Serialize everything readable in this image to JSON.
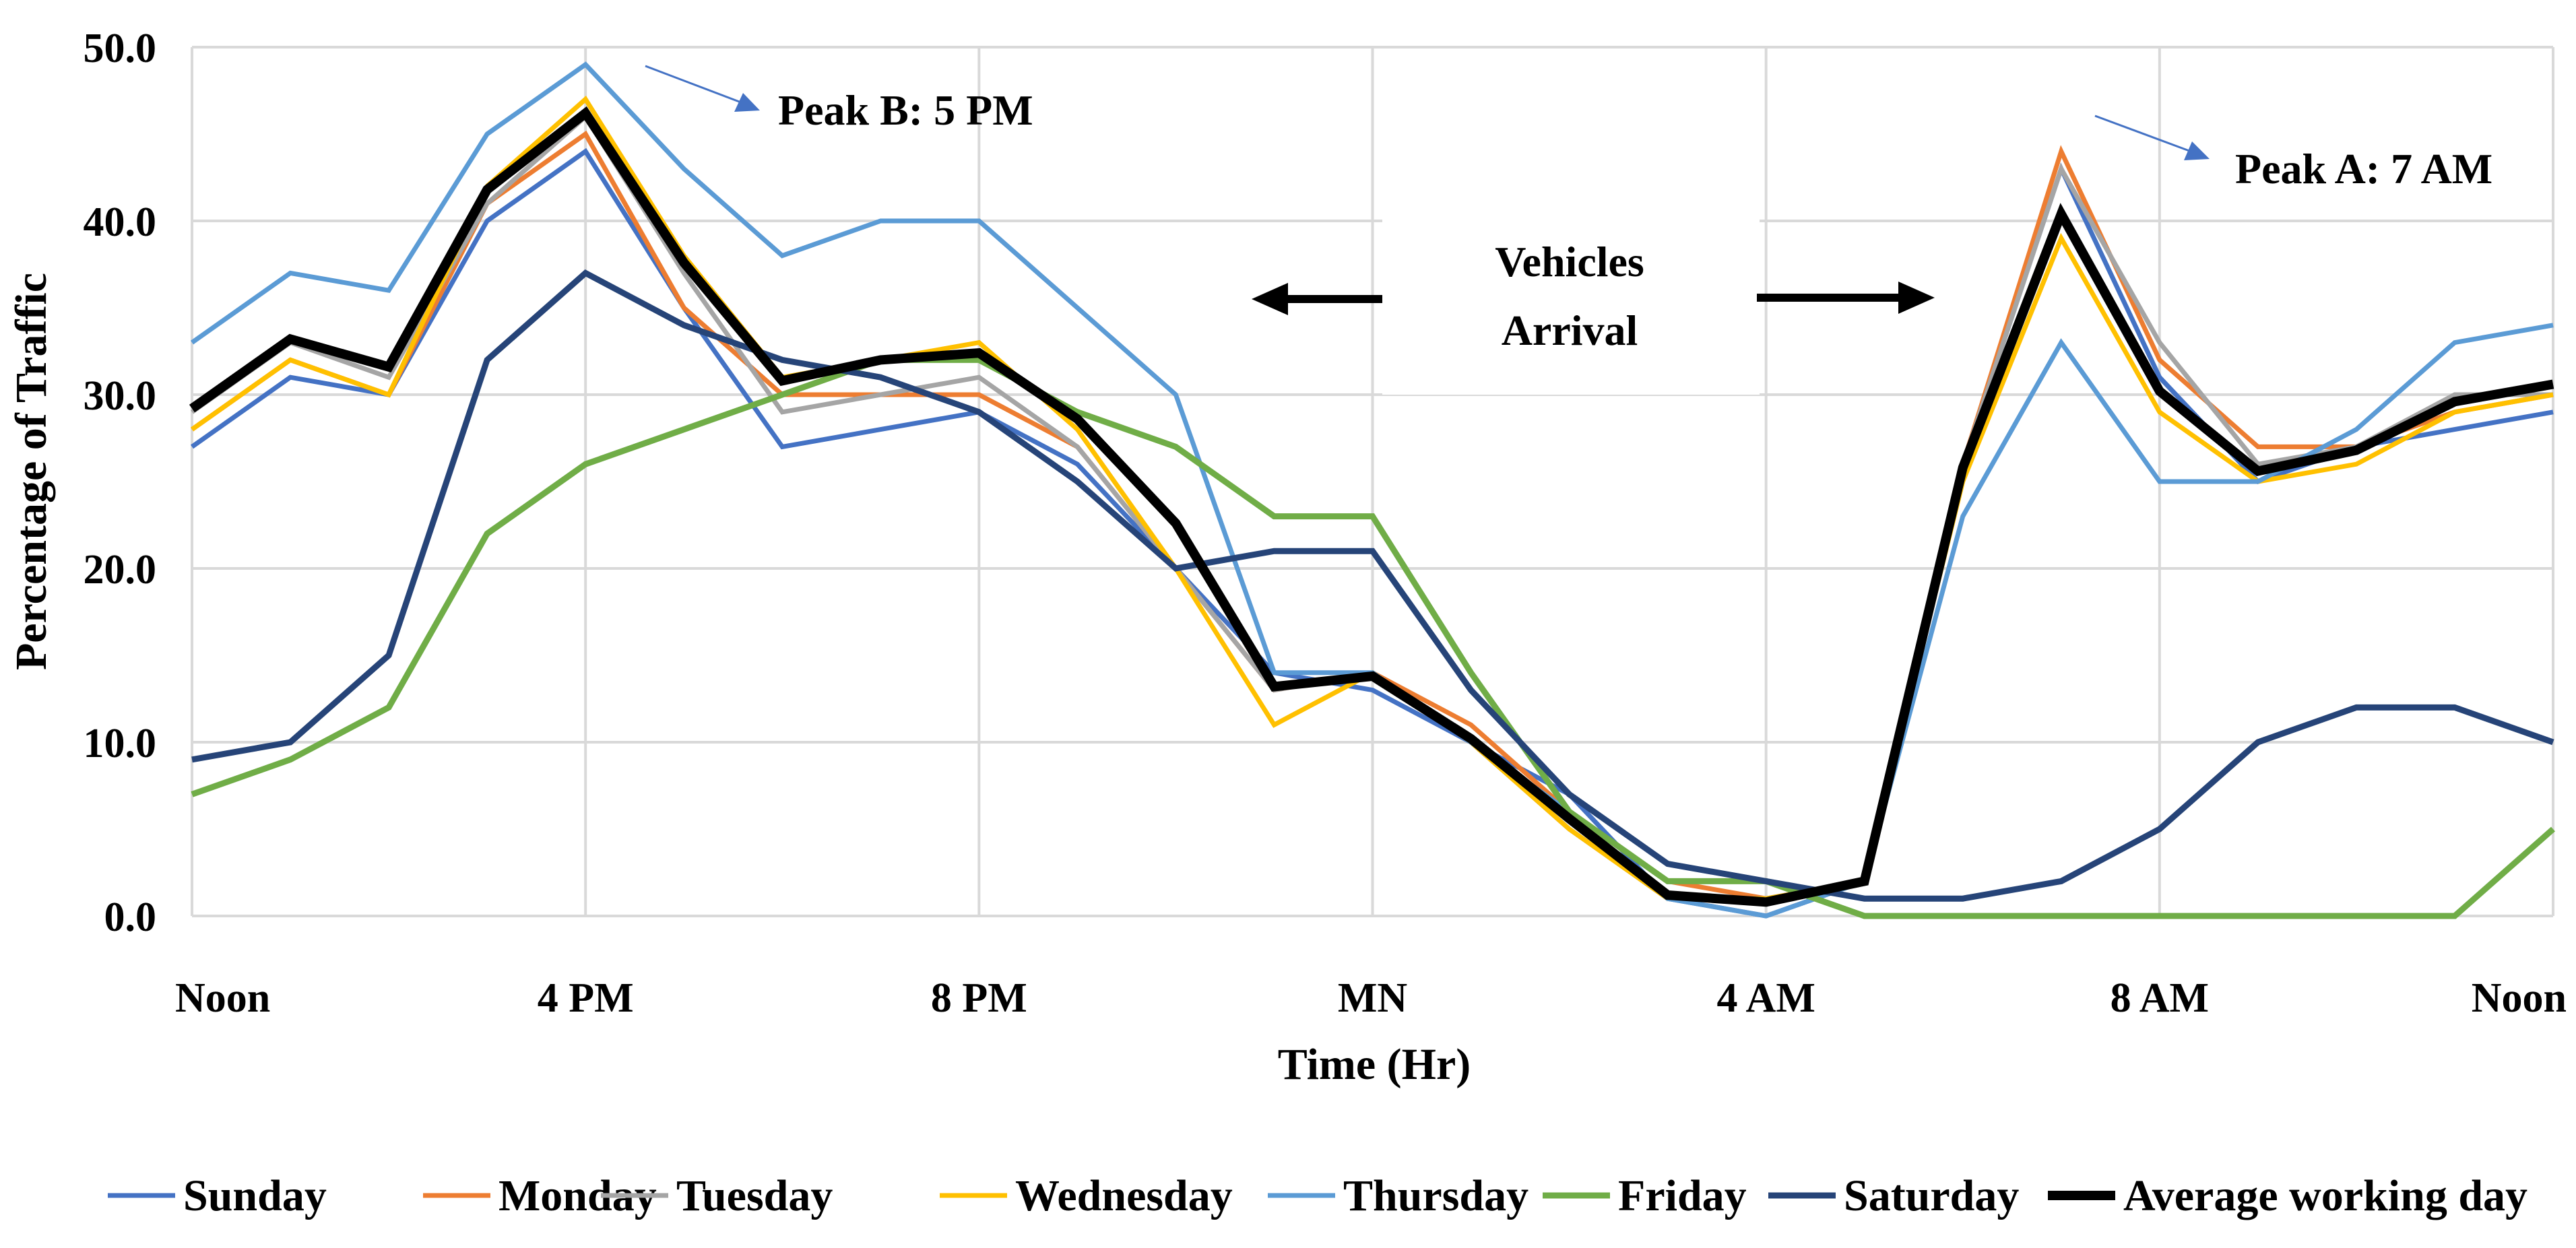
{
  "chart_data": {
    "type": "line",
    "title": "",
    "xlabel": "Time (Hr)",
    "ylabel": "Percentage of Traffic",
    "ylim": [
      0,
      50
    ],
    "grid": true,
    "legend_position": "bottom",
    "y_ticks": [
      0,
      10,
      20,
      30,
      40,
      50
    ],
    "y_tick_labels": [
      "0.0",
      "10.0",
      "20.0",
      "30.0",
      "40.0",
      "50.0"
    ],
    "x_hours": [
      0,
      1,
      2,
      3,
      4,
      5,
      6,
      7,
      8,
      9,
      10,
      11,
      12,
      13,
      14,
      15,
      16,
      17,
      18,
      19,
      20,
      21,
      22,
      23,
      24
    ],
    "x_tick_positions": [
      0,
      4,
      8,
      12,
      16,
      20,
      24
    ],
    "x_tick_labels": [
      "Noon",
      "4 PM",
      "8 PM",
      "MN",
      "4 AM",
      "8 AM",
      "Noon"
    ],
    "series": [
      {
        "name": "Sunday",
        "color": "#4472C4",
        "width": 7,
        "values": [
          27,
          31,
          30,
          40,
          44,
          35,
          27,
          28,
          29,
          26,
          20,
          14,
          13,
          10,
          7,
          1,
          0,
          2,
          26,
          43,
          31,
          25,
          27,
          28,
          29
        ]
      },
      {
        "name": "Monday",
        "color": "#ED7D31",
        "width": 7,
        "values": [
          28,
          32,
          30,
          41,
          45,
          35,
          30,
          30,
          30,
          27,
          20,
          13,
          14,
          11,
          6,
          2,
          1,
          2,
          26,
          44,
          32,
          27,
          27,
          29,
          30
        ]
      },
      {
        "name": "Tuesday",
        "color": "#A5A5A5",
        "width": 7,
        "values": [
          29,
          33,
          31,
          41,
          46,
          37,
          29,
          30,
          31,
          27,
          20,
          13,
          14,
          10,
          5,
          1,
          1,
          2,
          26,
          43,
          33,
          26,
          27,
          30,
          30
        ]
      },
      {
        "name": "Wednesday",
        "color": "#FFC000",
        "width": 7,
        "values": [
          28,
          32,
          30,
          42,
          47,
          38,
          31,
          32,
          33,
          28,
          20,
          11,
          14,
          10,
          5,
          1,
          1,
          2,
          25,
          39,
          29,
          25,
          26,
          29,
          30
        ]
      },
      {
        "name": "Thursday",
        "color": "#5B9BD5",
        "width": 7,
        "values": [
          33,
          37,
          36,
          45,
          49,
          43,
          38,
          40,
          40,
          35,
          30,
          14,
          14,
          10,
          6,
          1,
          0,
          2,
          23,
          33,
          25,
          25,
          28,
          33,
          34
        ]
      },
      {
        "name": "Friday",
        "color": "#70AD47",
        "width": 9,
        "values": [
          7,
          9,
          12,
          22,
          26,
          28,
          30,
          32,
          32,
          29,
          27,
          23,
          23,
          14,
          6,
          2,
          2,
          0,
          0,
          0,
          0,
          0,
          0,
          0,
          5
        ]
      },
      {
        "name": "Saturday",
        "color": "#264478",
        "width": 9,
        "values": [
          9,
          10,
          15,
          32,
          37,
          34,
          32,
          31,
          29,
          25,
          20,
          21,
          21,
          13,
          7,
          3,
          2,
          1,
          1,
          2,
          5,
          10,
          12,
          12,
          10
        ]
      },
      {
        "name": "Average working day",
        "color": "#000000",
        "width": 14,
        "values": [
          29.2,
          33.2,
          31.6,
          41.8,
          46.2,
          37.6,
          30.8,
          32,
          32.4,
          28.6,
          22.6,
          13.2,
          13.8,
          10.2,
          5.6,
          1.2,
          0.8,
          2,
          25.8,
          40.4,
          30.2,
          25.6,
          26.8,
          29.6,
          30.6
        ]
      }
    ],
    "annotations": {
      "peak_b": "Peak B: 5 PM",
      "peak_a": "Peak A: 7 AM",
      "vehicles_arrival_line1": "Vehicles",
      "vehicles_arrival_line2": "Arrival"
    }
  }
}
